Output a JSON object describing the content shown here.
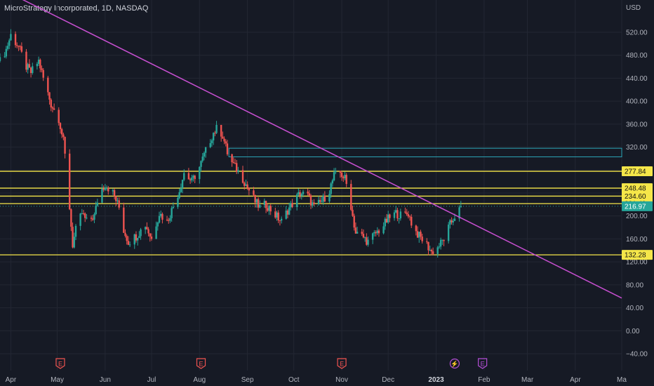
{
  "header": {
    "title": "MicroStrategy Incorporated, 1D, NASDAQ"
  },
  "colors": {
    "background": "#161a25",
    "up": "#26a69a",
    "down": "#ef5350",
    "level_line": "#f5e649",
    "trend_line": "#c74fd0",
    "box_line": "#2aa5b8",
    "current_price_bg": "#26a69a",
    "earnings_marker": "#ef5350",
    "dividend_marker": "#b44fd6"
  },
  "chart_data": {
    "type": "candlestick",
    "y_axis": {
      "currency_label": "USD",
      "min": -50,
      "max": 540,
      "ticks": [
        520,
        480,
        440,
        400,
        360,
        320,
        280,
        240,
        200,
        160,
        120,
        80,
        40,
        0,
        -40
      ],
      "tick_labels": [
        "520.00",
        "480.00",
        "440.00",
        "400.00",
        "360.00",
        "320.00",
        "280.00",
        "240.00",
        "200.00",
        "160.00",
        "120.00",
        "80.00",
        "40.00",
        "0.00",
        "−40.00"
      ]
    },
    "x_axis": {
      "start": "2022-03-25",
      "end": "2023-05-01",
      "ticks": [
        {
          "date": "2022-04-01",
          "label": "Apr",
          "bold": false
        },
        {
          "date": "2022-05-01",
          "label": "May",
          "bold": false
        },
        {
          "date": "2022-06-01",
          "label": "Jun",
          "bold": false
        },
        {
          "date": "2022-07-01",
          "label": "Jul",
          "bold": false
        },
        {
          "date": "2022-08-01",
          "label": "Aug",
          "bold": false
        },
        {
          "date": "2022-09-01",
          "label": "Sep",
          "bold": false
        },
        {
          "date": "2022-10-01",
          "label": "Oct",
          "bold": false
        },
        {
          "date": "2022-11-01",
          "label": "Nov",
          "bold": false
        },
        {
          "date": "2022-12-01",
          "label": "Dec",
          "bold": false
        },
        {
          "date": "2023-01-01",
          "label": "2023",
          "bold": true
        },
        {
          "date": "2023-02-01",
          "label": "Feb",
          "bold": false
        },
        {
          "date": "2023-03-01",
          "label": "Mar",
          "bold": false
        },
        {
          "date": "2023-04-01",
          "label": "Apr",
          "bold": false
        },
        {
          "date": "2023-05-01",
          "label": "Ma",
          "bold": false
        }
      ]
    },
    "price_path": [
      {
        "date": "2022-03-25",
        "close": 470
      },
      {
        "date": "2022-03-29",
        "close": 490
      },
      {
        "date": "2022-04-01",
        "close": 515
      },
      {
        "date": "2022-04-06",
        "close": 495
      },
      {
        "date": "2022-04-11",
        "close": 460
      },
      {
        "date": "2022-04-14",
        "close": 450
      },
      {
        "date": "2022-04-19",
        "close": 470
      },
      {
        "date": "2022-04-22",
        "close": 440
      },
      {
        "date": "2022-04-27",
        "close": 395
      },
      {
        "date": "2022-05-02",
        "close": 370
      },
      {
        "date": "2022-05-05",
        "close": 330
      },
      {
        "date": "2022-05-07",
        "close": 280
      },
      {
        "date": "2022-05-09",
        "close": 215
      },
      {
        "date": "2022-05-11",
        "close": 150
      },
      {
        "date": "2022-05-13",
        "close": 175
      },
      {
        "date": "2022-05-17",
        "close": 205
      },
      {
        "date": "2022-05-20",
        "close": 190
      },
      {
        "date": "2022-05-25",
        "close": 200
      },
      {
        "date": "2022-05-28",
        "close": 240
      },
      {
        "date": "2022-06-01",
        "close": 255
      },
      {
        "date": "2022-06-06",
        "close": 240
      },
      {
        "date": "2022-06-10",
        "close": 215
      },
      {
        "date": "2022-06-13",
        "close": 175
      },
      {
        "date": "2022-06-16",
        "close": 155
      },
      {
        "date": "2022-06-21",
        "close": 165
      },
      {
        "date": "2022-06-27",
        "close": 185
      },
      {
        "date": "2022-07-01",
        "close": 160
      },
      {
        "date": "2022-07-06",
        "close": 205
      },
      {
        "date": "2022-07-11",
        "close": 190
      },
      {
        "date": "2022-07-14",
        "close": 210
      },
      {
        "date": "2022-07-19",
        "close": 245
      },
      {
        "date": "2022-07-22",
        "close": 275
      },
      {
        "date": "2022-07-27",
        "close": 260
      },
      {
        "date": "2022-08-01",
        "close": 285
      },
      {
        "date": "2022-08-06",
        "close": 320
      },
      {
        "date": "2022-08-10",
        "close": 345
      },
      {
        "date": "2022-08-13",
        "close": 355
      },
      {
        "date": "2022-08-16",
        "close": 340
      },
      {
        "date": "2022-08-20",
        "close": 300
      },
      {
        "date": "2022-08-24",
        "close": 285
      },
      {
        "date": "2022-08-28",
        "close": 270
      },
      {
        "date": "2022-09-01",
        "close": 250
      },
      {
        "date": "2022-09-06",
        "close": 225
      },
      {
        "date": "2022-09-09",
        "close": 215
      },
      {
        "date": "2022-09-13",
        "close": 220
      },
      {
        "date": "2022-09-18",
        "close": 205
      },
      {
        "date": "2022-09-23",
        "close": 190
      },
      {
        "date": "2022-09-27",
        "close": 210
      },
      {
        "date": "2022-10-01",
        "close": 225
      },
      {
        "date": "2022-10-05",
        "close": 240
      },
      {
        "date": "2022-10-10",
        "close": 235
      },
      {
        "date": "2022-10-14",
        "close": 215
      },
      {
        "date": "2022-10-19",
        "close": 225
      },
      {
        "date": "2022-10-24",
        "close": 245
      },
      {
        "date": "2022-10-27",
        "close": 270
      },
      {
        "date": "2022-10-31",
        "close": 275
      },
      {
        "date": "2022-11-03",
        "close": 265
      },
      {
        "date": "2022-11-06",
        "close": 235
      },
      {
        "date": "2022-11-08",
        "close": 200
      },
      {
        "date": "2022-11-10",
        "close": 170
      },
      {
        "date": "2022-11-14",
        "close": 165
      },
      {
        "date": "2022-11-18",
        "close": 155
      },
      {
        "date": "2022-11-23",
        "close": 170
      },
      {
        "date": "2022-11-27",
        "close": 180
      },
      {
        "date": "2022-12-01",
        "close": 195
      },
      {
        "date": "2022-12-06",
        "close": 205
      },
      {
        "date": "2022-12-10",
        "close": 200
      },
      {
        "date": "2022-12-14",
        "close": 205
      },
      {
        "date": "2022-12-17",
        "close": 180
      },
      {
        "date": "2022-12-21",
        "close": 165
      },
      {
        "date": "2022-12-26",
        "close": 150
      },
      {
        "date": "2022-12-29",
        "close": 137
      },
      {
        "date": "2023-01-02",
        "close": 145
      },
      {
        "date": "2023-01-06",
        "close": 160
      },
      {
        "date": "2023-01-10",
        "close": 185
      },
      {
        "date": "2023-01-14",
        "close": 205
      },
      {
        "date": "2023-01-18",
        "close": 215
      }
    ],
    "horizontal_levels": [
      {
        "value": 277.84,
        "label": "277.84"
      },
      {
        "value": 248.48,
        "label": "248.48"
      },
      {
        "value": 234.6,
        "label": "234.60"
      },
      {
        "value": 221.49,
        "label": "221.49"
      },
      {
        "value": 132.28,
        "label": "132.28"
      }
    ],
    "current_price": {
      "value": 216.97,
      "label": "216.97"
    },
    "trend_line": {
      "from": {
        "date": "2022-03-15",
        "value": 610
      },
      "to": {
        "date": "2023-05-01",
        "value": 57
      }
    },
    "box_zone": {
      "from_date": "2022-08-20",
      "y_top": 318,
      "y_bottom": 303
    },
    "event_markers": [
      {
        "date": "2022-05-03",
        "label": "E",
        "kind": "earnings"
      },
      {
        "date": "2022-08-02",
        "label": "E",
        "kind": "earnings"
      },
      {
        "date": "2022-11-01",
        "label": "E",
        "kind": "earnings"
      },
      {
        "date": "2023-01-13",
        "label": "⚡",
        "kind": "split"
      },
      {
        "date": "2023-01-31",
        "label": "E",
        "kind": "dividend"
      }
    ]
  }
}
